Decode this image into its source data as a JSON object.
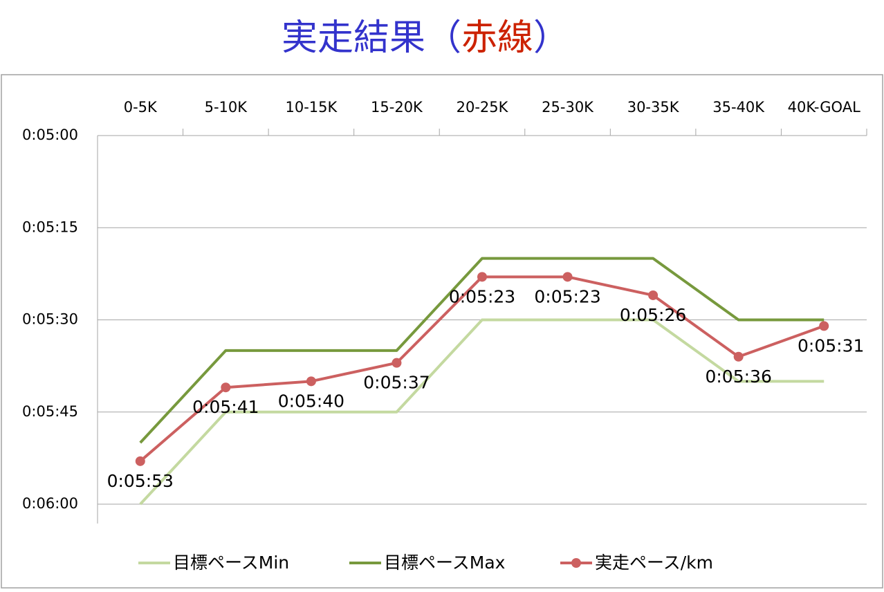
{
  "chart_data": {
    "type": "line",
    "title_parts": [
      {
        "text": "実走結果（",
        "color": "#3333cc"
      },
      {
        "text": "赤線",
        "color": "#cc2200"
      },
      {
        "text": "）",
        "color": "#3333cc"
      }
    ],
    "categories": [
      "0-5K",
      "5-10K",
      "10-15K",
      "15-20K",
      "20-25K",
      "25-30K",
      "30-35K",
      "35-40K",
      "40K-GOAL"
    ],
    "series": [
      {
        "name": "目標ペースMin",
        "color": "#c4d9a0",
        "values": [
          360,
          345,
          345,
          345,
          330,
          330,
          330,
          340,
          340
        ]
      },
      {
        "name": "目標ペースMax",
        "color": "#77993d",
        "values": [
          350,
          335,
          335,
          335,
          320,
          320,
          320,
          330,
          330
        ]
      },
      {
        "name": "実走ペース/km",
        "color": "#cc6060",
        "marker": "circle",
        "values": [
          353,
          341,
          340,
          337,
          323,
          323,
          326,
          336,
          331
        ],
        "value_labels": [
          "0:05:53",
          "0:05:41",
          "0:05:40",
          "0:05:37",
          "0:05:23",
          "0:05:23",
          "0:05:26",
          "0:05:36",
          "0:05:31"
        ]
      }
    ],
    "ylim": [
      300,
      360
    ],
    "y_reversed": true,
    "yticks": [
      {
        "value": 300,
        "label": "0:05:00"
      },
      {
        "value": 315,
        "label": "0:05:15"
      },
      {
        "value": 330,
        "label": "0:05:30"
      },
      {
        "value": 345,
        "label": "0:05:45"
      },
      {
        "value": 360,
        "label": "0:06:00"
      }
    ],
    "grid": true
  }
}
